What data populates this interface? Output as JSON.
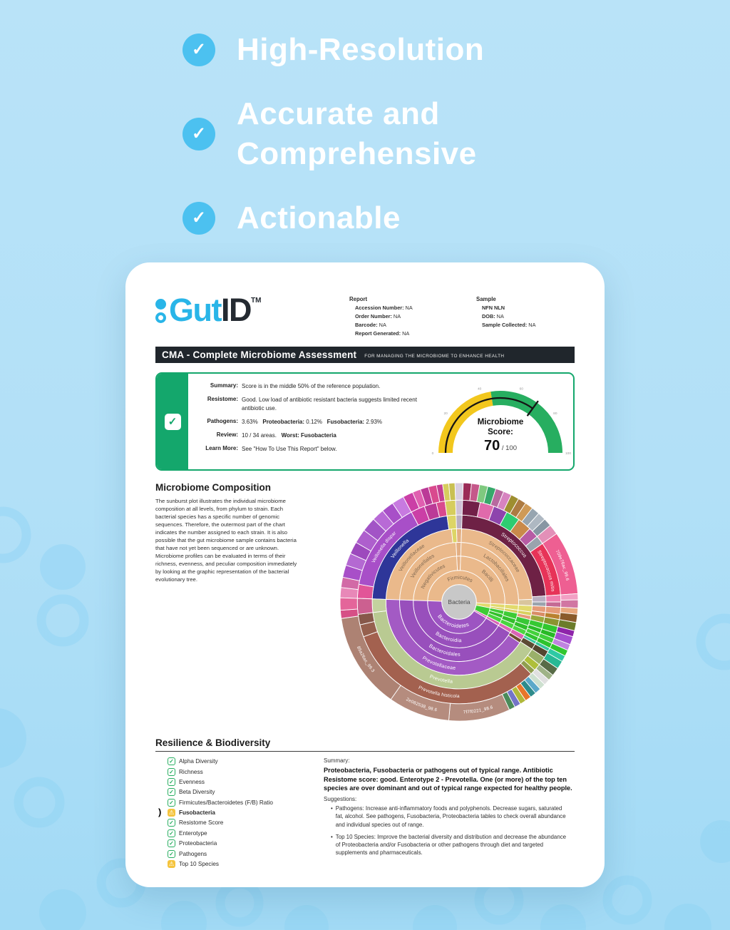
{
  "icons": {
    "feature_check": "✓",
    "summary_check": "✓",
    "ok": "✓",
    "warn": "⚠",
    "pointer": ")"
  },
  "page": {
    "features": [
      {
        "label": "High-Resolution"
      },
      {
        "label": "Accurate and Comprehensive"
      },
      {
        "label": "Actionable"
      }
    ]
  },
  "card": {
    "logo": {
      "gut": "Gut",
      "id": "ID",
      "tm": "TM"
    },
    "report": {
      "heading": "Report",
      "fields": [
        [
          "Accession Number:",
          "NA"
        ],
        [
          "Order Number:",
          "NA"
        ],
        [
          "Barcode:",
          "NA"
        ],
        [
          "Report Generated:",
          "NA"
        ]
      ]
    },
    "sample": {
      "heading": "Sample",
      "name": "NFN NLN",
      "fields": [
        [
          "DOB:",
          "NA"
        ],
        [
          "Sample Collected:",
          "NA"
        ]
      ]
    },
    "title_bar": {
      "title": "CMA - Complete Microbiome Assessment",
      "subtitle": "FOR MANAGING THE MICROBIOME TO ENHANCE HEALTH"
    },
    "summary_box": {
      "rows": [
        {
          "label": "Summary:",
          "parts": [
            {
              "t": "Score is in the middle 50% of the reference population."
            }
          ]
        },
        {
          "label": "Resistome:",
          "parts": [
            {
              "t": "Good. Low load of antibiotic resistant bacteria suggests limited recent antibiotic use."
            }
          ]
        },
        {
          "label": "Pathogens:",
          "parts": [
            {
              "t": "3.63%   "
            },
            {
              "t": "Proteobacteria:",
              "b": true
            },
            {
              "t": " 0.12%   "
            },
            {
              "t": "Fusobacteria:",
              "b": true
            },
            {
              "t": " 2.93%"
            }
          ]
        },
        {
          "label": "Review:",
          "parts": [
            {
              "t": "10 / 34 areas.   "
            },
            {
              "t": "Worst: Fusobacteria",
              "b": true
            }
          ]
        },
        {
          "label": "Learn More:",
          "parts": [
            {
              "t": "See \"How To Use This Report\" below."
            }
          ]
        }
      ]
    },
    "composition": {
      "heading": "Microbiome Composition",
      "paragraph": "The sunburst plot illustrates the individual microbiome composition at all levels, from phylum to strain. Each bacterial species has a specific number of genomic sequences. Therefore, the outermost part of the chart indicates the number assigned to each strain. It is also possible that the gut microbiome sample contains bacteria that have not yet been sequenced or are unknown. Microbiome profiles can be evaluated in terms of their richness, evenness, and peculiar composition immediately by looking at the graphic representation of the bacterial evolutionary tree."
    },
    "resilience": {
      "heading": "Resilience & Biodiversity",
      "items": [
        {
          "label": "Alpha Diversity",
          "status": "ok"
        },
        {
          "label": "Richness",
          "status": "ok"
        },
        {
          "label": "Evenness",
          "status": "ok"
        },
        {
          "label": "Beta Diversity",
          "status": "ok"
        },
        {
          "label": "Firmicutes/Bacteroidetes (F/B) Ratio",
          "status": "ok"
        },
        {
          "label": "Fusobacteria",
          "status": "warn",
          "active": true
        },
        {
          "label": "Resistome Score",
          "status": "ok"
        },
        {
          "label": "Enterotype",
          "status": "ok"
        },
        {
          "label": "Proteobacteria",
          "status": "ok"
        },
        {
          "label": "Pathogens",
          "status": "ok"
        },
        {
          "label": "Top 10 Species",
          "status": "warn"
        }
      ],
      "summary_label": "Summary:",
      "summary_bold": "Proteobacteria, Fusobacteria or pathogens out of typical range. Antibiotic Resistome score: good. Enterotype 2 - Prevotella. One (or more) of the top ten species are over dominant and out of typical range expected for healthy people.",
      "suggestions_label": "Suggestions:",
      "suggestions": [
        "Pathogens: Increase anti-inflammatory foods and polyphenols. Decrease sugars, saturated fat, alcohol. See pathogens, Fusobacteria, Proteobacteria tables to check overall abundance and individual species out of range.",
        "Top 10 Species: Improve the bacterial diversity and distribution and decrease the abundance of Proteobacteria and/or Fusobacteria or other pathogens through diet and targeted supplements and pharmaceuticals."
      ]
    }
  },
  "chart_data": [
    {
      "type": "sunburst",
      "title": "Microbiome Composition sunburst",
      "center": {
        "label": "Bacteria",
        "color": "#c8c8c8",
        "text_color": "#4a4a4a",
        "r": 0.145
      },
      "ring_radii": [
        0.145,
        0.265,
        0.385,
        0.5,
        0.615,
        0.73,
        0.855,
        1.0
      ],
      "segments": [
        [
          1,
          272,
          453,
          "#eab98b",
          "Firmicutes",
          "#7c6650"
        ],
        [
          1,
          93,
          101,
          "#e2da6d"
        ],
        [
          1,
          101,
          117,
          "#3ecb35"
        ],
        [
          1,
          117,
          121,
          "#da64b4"
        ],
        [
          1,
          121,
          272,
          "#9d54c2",
          "Bacteroidetes",
          "#ffffff"
        ],
        [
          2,
          272,
          357,
          "#eab98b",
          "Negativicutes",
          "#7c6650"
        ],
        [
          2,
          357,
          362,
          "#e3af83"
        ],
        [
          2,
          2,
          93,
          "#eab98b",
          "Bacilli",
          "#7c6650"
        ],
        [
          2,
          93,
          98,
          "#e2da6d"
        ],
        [
          2,
          98,
          101,
          "#d8d05e"
        ],
        [
          2,
          101,
          106,
          "#3ecb35"
        ],
        [
          2,
          106,
          111,
          "#33c02b"
        ],
        [
          2,
          111,
          117,
          "#48d43e"
        ],
        [
          2,
          117,
          121,
          "#da64b4"
        ],
        [
          2,
          121,
          272,
          "#984fbc",
          "Bacteroidia",
          "#ffffff"
        ],
        [
          3,
          272,
          357,
          "#eab98b",
          "Veillonellales",
          "#7c6650"
        ],
        [
          3,
          357,
          362,
          "#e3af83"
        ],
        [
          3,
          2,
          93,
          "#eab98b",
          "Lactobacillales",
          "#7c6650"
        ],
        [
          3,
          93,
          98,
          "#e2da6d"
        ],
        [
          3,
          98,
          101,
          "#d8d05e"
        ],
        [
          3,
          101,
          107,
          "#3ecb35"
        ],
        [
          3,
          107,
          112,
          "#33c02b"
        ],
        [
          3,
          112,
          117,
          "#48d43e"
        ],
        [
          3,
          117,
          121,
          "#da64b4"
        ],
        [
          3,
          121,
          272,
          "#984fbc",
          "Bacteroidales",
          "#ffffff"
        ],
        [
          4,
          272,
          354,
          "#eab98b",
          "Veillonellaceae",
          "#7c6650"
        ],
        [
          4,
          354,
          358,
          "#ddd566"
        ],
        [
          4,
          358,
          362,
          "#e3af83"
        ],
        [
          4,
          2,
          88,
          "#eab98b",
          "Streptococcaceae",
          "#7c6650"
        ],
        [
          4,
          88,
          93,
          "#d9c59d"
        ],
        [
          4,
          93,
          98,
          "#e2da6d"
        ],
        [
          4,
          98,
          101,
          "#d8d05e"
        ],
        [
          4,
          101,
          104,
          "#e59b78"
        ],
        [
          4,
          104,
          109,
          "#38c736"
        ],
        [
          4,
          109,
          113,
          "#2fbf2a"
        ],
        [
          4,
          113,
          117,
          "#4bd641"
        ],
        [
          4,
          117,
          121,
          "#da64b4"
        ],
        [
          4,
          121,
          124,
          "#6e4a2f"
        ],
        [
          4,
          124,
          272,
          "#a35ac4",
          "Prevotellaceae",
          "#ffffff"
        ],
        [
          5,
          272,
          352,
          "#2e3699",
          "Veillonella",
          "#ffffff"
        ],
        [
          5,
          352,
          358,
          "#ddd566"
        ],
        [
          5,
          358,
          362,
          "#b9aec2"
        ],
        [
          5,
          2,
          86,
          "#6e2145",
          "Streptococcus",
          "#ffffff"
        ],
        [
          5,
          86,
          90,
          "#b9aec2"
        ],
        [
          5,
          90,
          93,
          "#9aa3ad"
        ],
        [
          5,
          93,
          97,
          "#e59b78"
        ],
        [
          5,
          97,
          100,
          "#d98d66"
        ],
        [
          5,
          100,
          104,
          "#9aa83c"
        ],
        [
          5,
          104,
          108,
          "#35c932"
        ],
        [
          5,
          108,
          111,
          "#2abd28"
        ],
        [
          5,
          111,
          114,
          "#43d23b"
        ],
        [
          5,
          114,
          117,
          "#30c52e"
        ],
        [
          5,
          117,
          119,
          "#39c9a0"
        ],
        [
          5,
          119,
          123,
          "#5c4a33"
        ],
        [
          5,
          123,
          263,
          "#b9ca92",
          "Prevotella",
          "#ffffff"
        ],
        [
          5,
          263,
          272,
          "#c3d19e"
        ],
        [
          6,
          272,
          280,
          "#e25598"
        ],
        [
          6,
          280,
          332,
          "#a84fc8",
          "Veillonella dispar",
          "#ffffff"
        ],
        [
          6,
          332,
          340,
          "#cb3fa6"
        ],
        [
          6,
          340,
          347,
          "#bb3a97"
        ],
        [
          6,
          347,
          352,
          "#d94a8e"
        ],
        [
          6,
          352,
          358,
          "#d6cd5e"
        ],
        [
          6,
          358,
          362,
          "#cfc2d6"
        ],
        [
          6,
          2,
          12,
          "#722048"
        ],
        [
          6,
          12,
          20,
          "#e06aab"
        ],
        [
          6,
          20,
          28,
          "#8e44ad"
        ],
        [
          6,
          28,
          36,
          "#2ecc71"
        ],
        [
          6,
          36,
          44,
          "#c98a4b"
        ],
        [
          6,
          44,
          50,
          "#b75ba4"
        ],
        [
          6,
          50,
          55,
          "#9aa3ad"
        ],
        [
          6,
          55,
          86,
          "#e73358",
          "Streptococcus mitis",
          "#ffffff"
        ],
        [
          6,
          86,
          90,
          "#ee7fae"
        ],
        [
          6,
          90,
          93,
          "#c46a94"
        ],
        [
          6,
          93,
          97,
          "#e59b78"
        ],
        [
          6,
          97,
          100,
          "#b9812f"
        ],
        [
          6,
          100,
          104,
          "#8a9430"
        ],
        [
          6,
          104,
          108,
          "#31c72f"
        ],
        [
          6,
          108,
          111,
          "#28ba26"
        ],
        [
          6,
          111,
          114,
          "#3fd03a"
        ],
        [
          6,
          114,
          117,
          "#2dc32c"
        ],
        [
          6,
          117,
          119,
          "#35c59c"
        ],
        [
          6,
          119,
          123,
          "#54452f"
        ],
        [
          6,
          123,
          128,
          "#9ab06a"
        ],
        [
          6,
          128,
          132,
          "#aebf3a"
        ],
        [
          6,
          132,
          135,
          "#8f9e4f"
        ],
        [
          6,
          135,
          250,
          "#a3614f",
          "Prevotella histicola",
          "#ffffff"
        ],
        [
          6,
          250,
          257,
          "#96604e"
        ],
        [
          6,
          257,
          263,
          "#87584a"
        ],
        [
          6,
          263,
          272,
          "#cc6090"
        ],
        [
          7,
          272,
          277,
          "#e888b8"
        ],
        [
          7,
          277,
          282,
          "#d26aa6"
        ],
        [
          7,
          282,
          288,
          "#a84fc8"
        ],
        [
          7,
          288,
          294,
          "#b469d2"
        ],
        [
          7,
          294,
          300,
          "#9d49bd"
        ],
        [
          7,
          300,
          307,
          "#ae5fcd"
        ],
        [
          7,
          307,
          314,
          "#a254c6"
        ],
        [
          7,
          314,
          320,
          "#b86ad6"
        ],
        [
          7,
          320,
          326,
          "#a84fc8"
        ],
        [
          7,
          326,
          332,
          "#c77ae0"
        ],
        [
          7,
          332,
          337,
          "#cb3fa6"
        ],
        [
          7,
          337,
          341,
          "#e05fb0"
        ],
        [
          7,
          341,
          345,
          "#bb3a97"
        ],
        [
          7,
          345,
          349,
          "#d94a8e"
        ],
        [
          7,
          349,
          352,
          "#c43f92"
        ],
        [
          7,
          352,
          355,
          "#d6cd5e"
        ],
        [
          7,
          355,
          358,
          "#c9c052"
        ],
        [
          7,
          358,
          362,
          "#d9cfe0"
        ],
        [
          7,
          2,
          6,
          "#9b2b57"
        ],
        [
          7,
          6,
          10,
          "#c5588a"
        ],
        [
          7,
          10,
          14,
          "#7fc97f"
        ],
        [
          7,
          14,
          18,
          "#37a86a"
        ],
        [
          7,
          18,
          22,
          "#b8699f"
        ],
        [
          7,
          22,
          26,
          "#d783c0"
        ],
        [
          7,
          26,
          30,
          "#9e8e30"
        ],
        [
          7,
          30,
          34,
          "#ad7b42"
        ],
        [
          7,
          34,
          38,
          "#cf9a56"
        ],
        [
          7,
          38,
          42,
          "#97a5b0"
        ],
        [
          7,
          42,
          46,
          "#aeb8c2"
        ],
        [
          7,
          46,
          50,
          "#8796a3"
        ],
        [
          7,
          50,
          55,
          "#e390b8"
        ],
        [
          7,
          55,
          86,
          "#ee5f92",
          "709e76ac_99.6",
          "#ffffff"
        ],
        [
          7,
          86,
          89,
          "#f2a0c4"
        ],
        [
          7,
          89,
          93,
          "#d176a2"
        ],
        [
          7,
          93,
          96,
          "#e8a87e"
        ],
        [
          7,
          96,
          100,
          "#8a5a2b"
        ],
        [
          7,
          100,
          104,
          "#6b7c2a"
        ],
        [
          7,
          104,
          107,
          "#8e24aa"
        ],
        [
          7,
          107,
          111,
          "#a64fd0"
        ],
        [
          7,
          111,
          114,
          "#c084e0"
        ],
        [
          7,
          114,
          117,
          "#31c72f"
        ],
        [
          7,
          117,
          120,
          "#2ec9a4"
        ],
        [
          7,
          120,
          124,
          "#28b894"
        ],
        [
          7,
          124,
          128,
          "#586b47"
        ],
        [
          7,
          128,
          131,
          "#9fb387"
        ],
        [
          7,
          131,
          134,
          "#e0e0e0"
        ],
        [
          7,
          134,
          137,
          "#cde0cf"
        ],
        [
          7,
          137,
          140,
          "#5ba8c9"
        ],
        [
          7,
          140,
          143,
          "#2e8b8b"
        ],
        [
          7,
          143,
          146,
          "#e8762a"
        ],
        [
          7,
          146,
          149,
          "#b0b83a"
        ],
        [
          7,
          149,
          152,
          "#7474c8"
        ],
        [
          7,
          152,
          155,
          "#4b8b5a"
        ],
        [
          7,
          155,
          185,
          "#b58c7e",
          "7f7f0221_98.6",
          "#ffffff"
        ],
        [
          7,
          185,
          215,
          "#b58c7e",
          "2e082538_98.6",
          "#ffffff"
        ],
        [
          7,
          215,
          262,
          "#ad8273",
          "85a26ac_99.3",
          "#ffffff"
        ],
        [
          7,
          262,
          266,
          "#d64f86"
        ],
        [
          7,
          266,
          272,
          "#e4659a"
        ]
      ]
    },
    {
      "type": "gauge",
      "title_line1": "Microbiome",
      "title_line2": "Score:",
      "value": 70,
      "max": 100,
      "value_suffix": "/ 100",
      "ticks": [
        0,
        20,
        40,
        60,
        80,
        100
      ],
      "segments": [
        {
          "from": 0,
          "to": 45,
          "color": "#f2c71d"
        },
        {
          "from": 45,
          "to": 100,
          "color": "#27ae60"
        }
      ]
    }
  ]
}
